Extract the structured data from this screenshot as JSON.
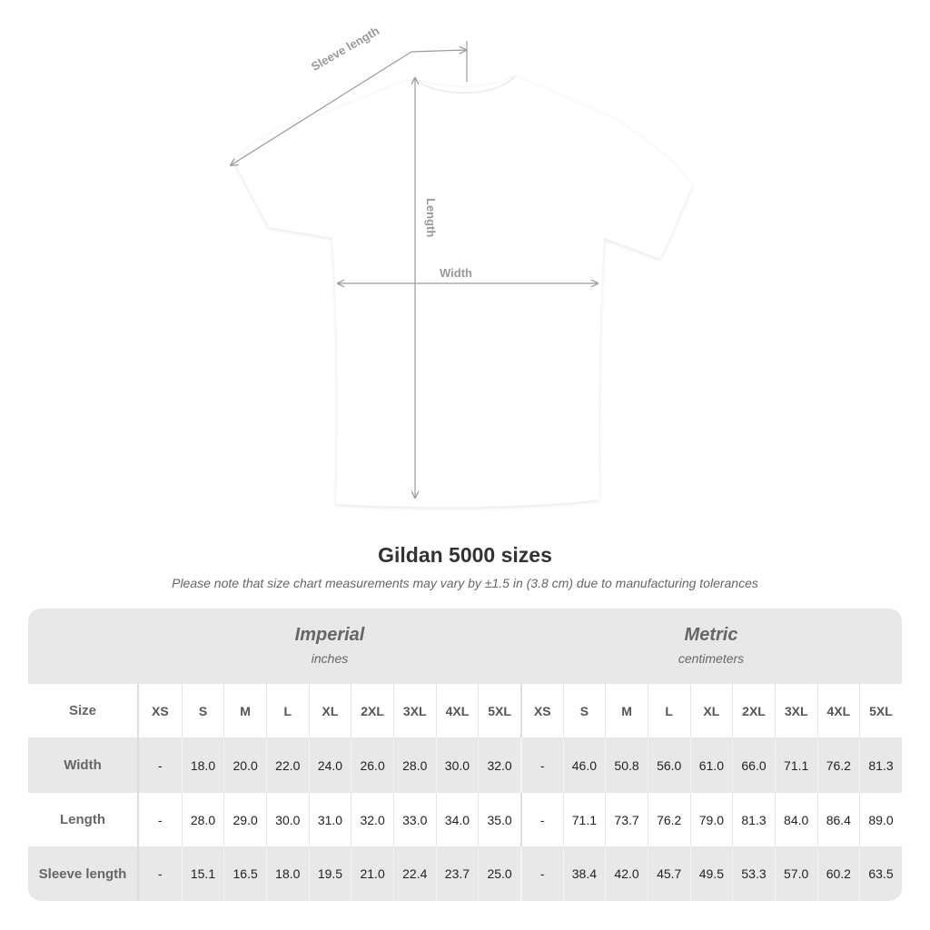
{
  "diagram": {
    "labels": {
      "sleeve": "Sleeve length",
      "length": "Length",
      "width": "Width"
    },
    "shirt_color": "#ffffff",
    "line_color": "#9a9a9a"
  },
  "title": "Gildan 5000 sizes",
  "note": "Please note that size chart measurements may vary by ±1.5 in (3.8 cm) due to manufacturing tolerances",
  "table": {
    "groups": [
      {
        "name": "Imperial",
        "unit": "inches"
      },
      {
        "name": "Metric",
        "unit": "centimeters"
      }
    ],
    "size_label": "Size",
    "sizes": [
      "XS",
      "S",
      "M",
      "L",
      "XL",
      "2XL",
      "3XL",
      "4XL",
      "5XL"
    ],
    "rows": [
      {
        "label": "Width",
        "imperial": [
          "-",
          "18.0",
          "20.0",
          "22.0",
          "24.0",
          "26.0",
          "28.0",
          "30.0",
          "32.0"
        ],
        "metric": [
          "-",
          "46.0",
          "50.8",
          "56.0",
          "61.0",
          "66.0",
          "71.1",
          "76.2",
          "81.3"
        ]
      },
      {
        "label": "Length",
        "imperial": [
          "-",
          "28.0",
          "29.0",
          "30.0",
          "31.0",
          "32.0",
          "33.0",
          "34.0",
          "35.0"
        ],
        "metric": [
          "-",
          "71.1",
          "73.7",
          "76.2",
          "79.0",
          "81.3",
          "84.0",
          "86.4",
          "89.0"
        ]
      },
      {
        "label": "Sleeve length",
        "imperial": [
          "-",
          "15.1",
          "16.5",
          "18.0",
          "19.5",
          "21.0",
          "22.4",
          "23.7",
          "25.0"
        ],
        "metric": [
          "-",
          "38.4",
          "42.0",
          "45.7",
          "49.5",
          "53.3",
          "57.0",
          "60.2",
          "63.5"
        ]
      }
    ]
  }
}
